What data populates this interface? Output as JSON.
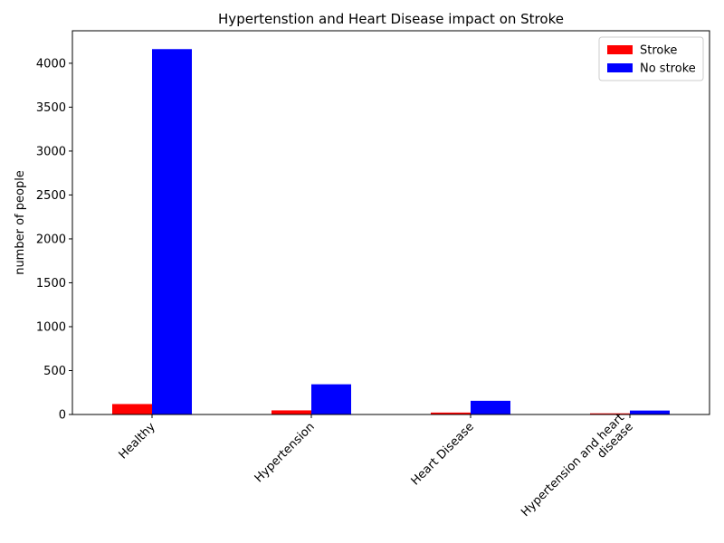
{
  "chart_data": {
    "type": "bar",
    "title": "Hypertenstion and Heart Disease impact on Stroke",
    "xlabel": "",
    "ylabel": "number of people",
    "categories": [
      [
        "Healthy"
      ],
      [
        "Hypertension"
      ],
      [
        "Heart Disease"
      ],
      [
        "Hypertension and heart",
        "disease"
      ]
    ],
    "series": [
      {
        "name": "Stroke",
        "color": "#ff0000",
        "values": [
          119,
          47,
          22,
          13
        ]
      },
      {
        "name": "No stroke",
        "color": "#0000ff",
        "values": [
          4161,
          344,
          156,
          45
        ]
      }
    ],
    "ylim": [
      0,
      4370
    ],
    "yticks": [
      0,
      500,
      1000,
      1500,
      2000,
      2500,
      3000,
      3500,
      4000
    ],
    "grid": false,
    "legend": "top-right"
  }
}
